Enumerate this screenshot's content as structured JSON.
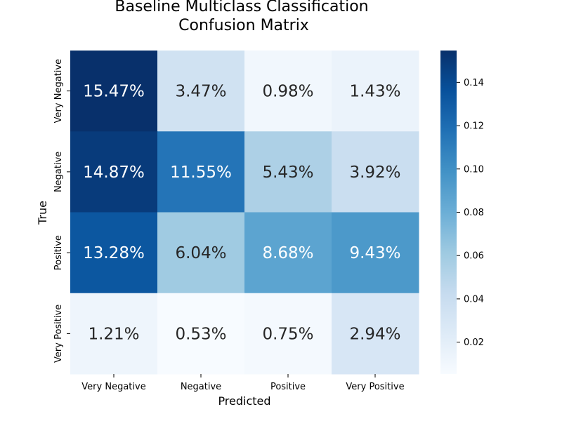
{
  "chart_data": {
    "type": "heatmap",
    "title_lines": [
      "Baseline Multiclass Classification",
      "Confusion Matrix"
    ],
    "xlabel": "Predicted",
    "ylabel": "True",
    "x_categories": [
      "Very Negative",
      "Negative",
      "Positive",
      "Very Positive"
    ],
    "y_categories": [
      "Very Negative",
      "Negative",
      "Positive",
      "Very Positive"
    ],
    "values": [
      [
        0.1547,
        0.0347,
        0.0098,
        0.0143
      ],
      [
        0.1487,
        0.1155,
        0.0543,
        0.0392
      ],
      [
        0.1328,
        0.0604,
        0.0868,
        0.0943
      ],
      [
        0.0121,
        0.0053,
        0.0075,
        0.0294
      ]
    ],
    "cell_labels": [
      [
        "15.47%",
        "3.47%",
        "0.98%",
        "1.43%"
      ],
      [
        "14.87%",
        "11.55%",
        "5.43%",
        "3.92%"
      ],
      [
        "13.28%",
        "6.04%",
        "8.68%",
        "9.43%"
      ],
      [
        "1.21%",
        "0.53%",
        "0.75%",
        "2.94%"
      ]
    ],
    "colormap": "Blues",
    "color_range": [
      0.0053,
      0.1547
    ],
    "colorbar_ticks": [
      "0.02",
      "0.04",
      "0.06",
      "0.08",
      "0.10",
      "0.12",
      "0.14"
    ],
    "colorbar_tick_values": [
      0.02,
      0.04,
      0.06,
      0.08,
      0.1,
      0.12,
      0.14
    ],
    "colors": {
      "low": "#f7fbff",
      "high": "#08306b",
      "text_dark": "#262626",
      "text_light": "#ffffff"
    }
  }
}
